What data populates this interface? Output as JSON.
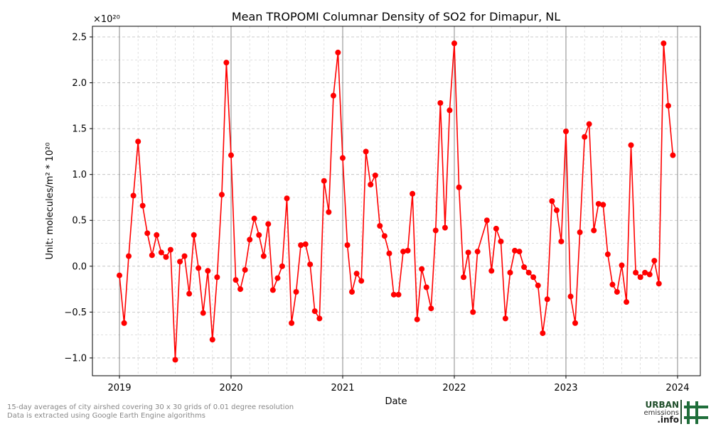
{
  "chart_data": {
    "type": "line",
    "title": "Mean TROPOMI Columnar Density of SO2 for Dimapur, NL",
    "x_label": "Date",
    "y_label": "Unit: molecules/m² * 10²⁰",
    "y_offset_label": "×10²⁰",
    "xlim": [
      2018.758,
      2024.204
    ],
    "xticks": [
      2019,
      2020,
      2021,
      2022,
      2023,
      2024
    ],
    "ylim": [
      -1.194,
      2.616
    ],
    "yticks": [
      {
        "value": -1,
        "label": "−1.0"
      },
      {
        "value": -0.5,
        "label": "−0.5"
      },
      {
        "value": 0,
        "label": "0.0"
      },
      {
        "value": 0.5,
        "label": "0.5"
      },
      {
        "value": 1,
        "label": "1.0"
      },
      {
        "value": 1.5,
        "label": "1.5"
      },
      {
        "value": 2,
        "label": "2.0"
      },
      {
        "value": 2.5,
        "label": "2.5"
      }
    ],
    "grid": true,
    "color": "#ff0000",
    "x": [
      2019,
      2019.042,
      2019.083,
      2019.125,
      2019.167,
      2019.208,
      2019.25,
      2019.292,
      2019.333,
      2019.375,
      2019.417,
      2019.458,
      2019.5,
      2019.542,
      2019.583,
      2019.625,
      2019.667,
      2019.708,
      2019.75,
      2019.792,
      2019.833,
      2019.875,
      2019.917,
      2019.958,
      2020,
      2020.042,
      2020.083,
      2020.125,
      2020.167,
      2020.208,
      2020.25,
      2020.292,
      2020.333,
      2020.375,
      2020.417,
      2020.458,
      2020.5,
      2020.542,
      2020.583,
      2020.625,
      2020.667,
      2020.708,
      2020.75,
      2020.792,
      2020.833,
      2020.875,
      2020.917,
      2020.958,
      2021,
      2021.042,
      2021.083,
      2021.125,
      2021.167,
      2021.208,
      2021.25,
      2021.292,
      2021.333,
      2021.375,
      2021.417,
      2021.458,
      2021.5,
      2021.542,
      2021.583,
      2021.625,
      2021.667,
      2021.708,
      2021.75,
      2021.792,
      2021.833,
      2021.875,
      2021.917,
      2021.958,
      2022,
      2022.042,
      2022.083,
      2022.125,
      2022.167,
      2022.208,
      2022.292,
      2022.333,
      2022.375,
      2022.417,
      2022.458,
      2022.5,
      2022.542,
      2022.583,
      2022.625,
      2022.667,
      2022.708,
      2022.75,
      2022.792,
      2022.833,
      2022.875,
      2022.917,
      2022.958,
      2023,
      2023.042,
      2023.083,
      2023.125,
      2023.167,
      2023.208,
      2023.25,
      2023.292,
      2023.333,
      2023.375,
      2023.417,
      2023.458,
      2023.5,
      2023.542,
      2023.583,
      2023.625,
      2023.667,
      2023.708,
      2023.75,
      2023.792,
      2023.833,
      2023.875,
      2023.917,
      2023.958
    ],
    "values": [
      -0.1,
      -0.62,
      0.11,
      0.77,
      1.36,
      0.66,
      0.36,
      0.12,
      0.34,
      0.15,
      0.1,
      0.18,
      -1.02,
      0.05,
      0.11,
      -0.3,
      0.34,
      -0.02,
      -0.51,
      -0.05,
      -0.8,
      -0.12,
      0.78,
      2.22,
      1.21,
      -0.15,
      -0.25,
      -0.04,
      0.29,
      0.52,
      0.34,
      0.11,
      0.46,
      -0.26,
      -0.13,
      0.0,
      0.74,
      -0.62,
      -0.28,
      0.23,
      0.24,
      0.02,
      -0.49,
      -0.57,
      0.93,
      0.59,
      1.86,
      2.33,
      1.18,
      0.23,
      -0.28,
      -0.08,
      -0.16,
      1.25,
      0.89,
      0.99,
      0.44,
      0.33,
      0.14,
      -0.31,
      -0.31,
      0.16,
      0.17,
      0.79,
      -0.58,
      -0.03,
      -0.23,
      -0.46,
      0.39,
      1.78,
      0.42,
      1.7,
      2.43,
      0.86,
      -0.12,
      0.15,
      -0.5,
      0.16,
      0.5,
      -0.05,
      0.41,
      0.27,
      -0.57,
      -0.07,
      0.17,
      0.16,
      -0.01,
      -0.07,
      -0.12,
      -0.21,
      -0.73,
      -0.36,
      0.71,
      0.61,
      0.27,
      1.47,
      -0.33,
      -0.62,
      0.37,
      1.41,
      1.55,
      0.39,
      0.68,
      0.67,
      0.13,
      -0.2,
      -0.28,
      0.01,
      -0.39,
      1.32,
      -0.07,
      -0.12,
      -0.07,
      -0.09,
      0.06,
      -0.19,
      2.43,
      1.75,
      1.21
    ]
  },
  "footnote": [
    "15-day averages of city airshed covering 30 x 30 grids of 0.01 degree resolution",
    "Data is extracted using Google Earth Engine algorithms"
  ],
  "logo": [
    "URBAN",
    "emissions",
    ".info"
  ]
}
